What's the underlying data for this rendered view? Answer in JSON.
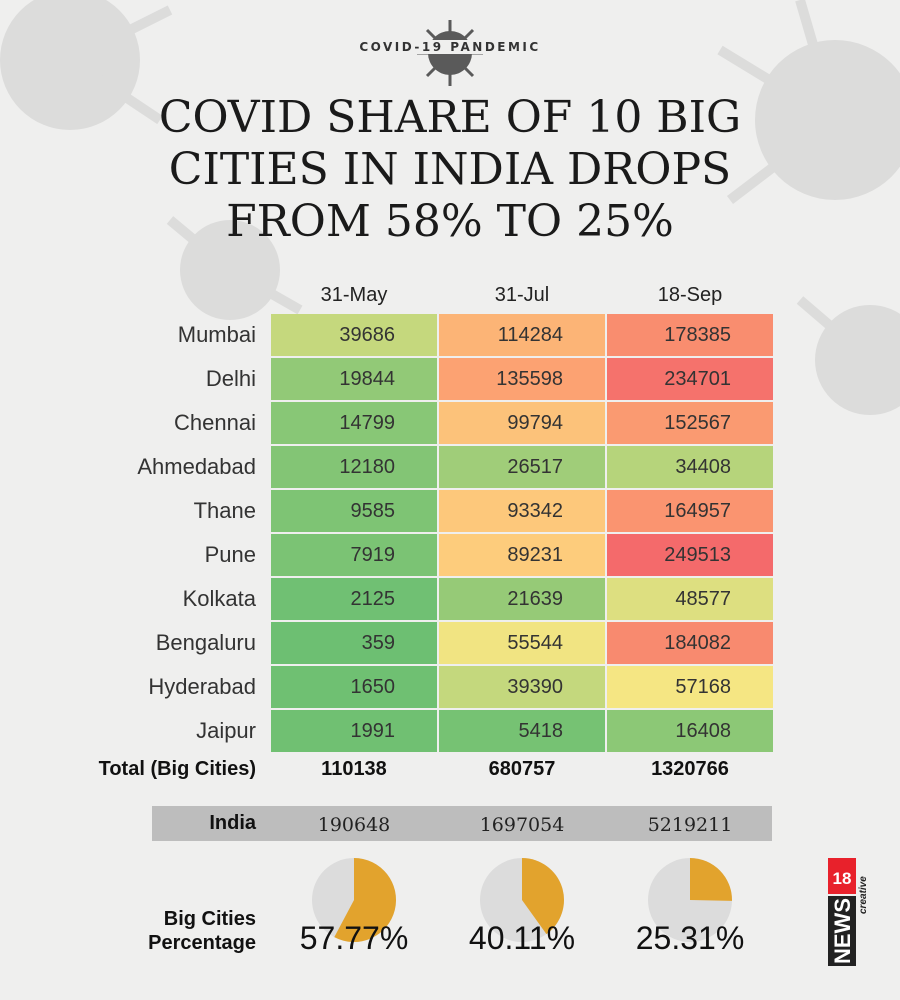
{
  "badge": "COVID-19 PANDEMIC",
  "title_lines": [
    "COVID SHARE OF 10 BIG",
    "CITIES IN INDIA DROPS",
    "FROM 58% TO 25%"
  ],
  "colors": {
    "green": "#6cbf72",
    "yellow": "#fde884",
    "orange": "#fca572",
    "red": "#f46a6b",
    "pie_fill": "#e2a32d",
    "pie_rest": "#dcdcdc",
    "logo_red": "#e8212b"
  },
  "chart_data": [
    {
      "type": "table",
      "columns": [
        "31-May",
        "31-Jul",
        "18-Sep"
      ],
      "rows": [
        {
          "city": "Mumbai",
          "values": [
            39686,
            114284,
            178385
          ]
        },
        {
          "city": "Delhi",
          "values": [
            19844,
            135598,
            234701
          ]
        },
        {
          "city": "Chennai",
          "values": [
            14799,
            99794,
            152567
          ]
        },
        {
          "city": "Ahmedabad",
          "values": [
            12180,
            26517,
            34408
          ]
        },
        {
          "city": "Thane",
          "values": [
            9585,
            93342,
            164957
          ]
        },
        {
          "city": "Pune",
          "values": [
            7919,
            89231,
            249513
          ]
        },
        {
          "city": "Kolkata",
          "values": [
            2125,
            21639,
            48577
          ]
        },
        {
          "city": "Bengaluru",
          "values": [
            359,
            55544,
            184082
          ]
        },
        {
          "city": "Hyderabad",
          "values": [
            1650,
            39390,
            57168
          ]
        },
        {
          "city": "Jaipur",
          "values": [
            1991,
            5418,
            16408
          ]
        }
      ],
      "total": {
        "label": "Total (Big Cities)",
        "values": [
          110138,
          680757,
          1320766
        ]
      },
      "india": {
        "label": "India",
        "values": [
          190648,
          1697054,
          5219211
        ]
      }
    },
    {
      "type": "pie",
      "label_lines": [
        "Big Cities",
        "Percentage"
      ],
      "values": [
        57.77,
        40.11,
        25.31
      ],
      "value_labels": [
        "57.77%",
        "40.11%",
        "25.31%"
      ]
    }
  ],
  "logo": {
    "text": "NEWS",
    "number": "18",
    "tag": "creative"
  }
}
